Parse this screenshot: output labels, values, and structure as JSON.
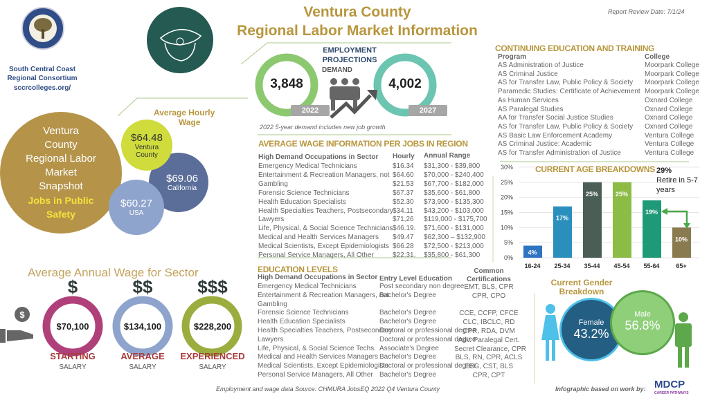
{
  "header": {
    "title_line1": "Ventura County",
    "title_line2": "Regional Labor Market Information",
    "review_date": "Report Review Date: 7/1/24"
  },
  "logo": {
    "org_line1": "South Central Coast",
    "org_line2": "Regional Consortium",
    "url": "sccrcolleges.org/",
    "seal_text": "SOUTH CENTRAL COAST REGIONAL CONSORTIUM"
  },
  "snapshot": {
    "line1": "Ventura",
    "line2": "County",
    "line3": "Regional Labor",
    "line4": "Market",
    "line5": "Snapshot",
    "highlight": "Jobs in Public Safety"
  },
  "hourly": {
    "title_line1": "Average Hourly",
    "title_line2": "Wage",
    "county_value": "$64.48",
    "county_label1": "Ventura",
    "county_label2": "County",
    "ca_value": "$69.06",
    "ca_label": "California",
    "usa_value": "$60.27",
    "usa_label": "USA"
  },
  "projections": {
    "title1": "EMPLOYMENT",
    "title2": "PROJECTIONS",
    "title3": "DEMAND",
    "value_2022": "3,848",
    "year_2022": "2022",
    "value_2027": "4,002",
    "year_2027": "2027",
    "note": "2022 5-year demand includes new job growth"
  },
  "wages": {
    "heading": "AVERAGE WAGE INFORMATION PER JOBS IN REGION",
    "col_occ": "High Demand Occupations in Sector",
    "col_hourly": "Hourly",
    "col_annual": "Annual Range",
    "rows": [
      {
        "occ": "Emergency Medical Technicians",
        "hourly": "$16.34",
        "annual": "$31,300 - $39,800"
      },
      {
        "occ": "Entertainment & Recreation Managers, not",
        "hourly": "$64.60",
        "annual": "$70,000 - $240,400"
      },
      {
        "occ": "Gambling",
        "hourly": "$21.53",
        "annual": "$67,700 - $182,000"
      },
      {
        "occ": "Forensic Science Technicians",
        "hourly": "$67.37",
        "annual": "$35,600 - $61,800"
      },
      {
        "occ": "Health Education Specialists",
        "hourly": "$52.30",
        "annual": "$73,900 - $135,300"
      },
      {
        "occ": "Health Specialties Teachers, Postsecondary",
        "hourly": "$34.11",
        "annual": "$43,200 - $103,000"
      },
      {
        "occ": "Lawyers",
        "hourly": "$71,26",
        "annual": "$119,000 - $175,700"
      },
      {
        "occ": "Life, Physical, & Social Science Technicians",
        "hourly": "$46.19.",
        "annual": "$71,600 - $131,000"
      },
      {
        "occ": "Medical and Health Services Managers",
        "hourly": "$49.47",
        "annual": "$62,300 – $132,900"
      },
      {
        "occ": "Medical Scientists, Except Epidemiologists",
        "hourly": "$66.28",
        "annual": "$72,500 - $213,000"
      },
      {
        "occ": "Personal Service Managers, All Other",
        "hourly": "$22.31.",
        "annual": "$35,800 - $61,300"
      }
    ]
  },
  "education": {
    "heading": "EDUCATION LEVELS",
    "col_occ": "High Demand Occupations in Sector",
    "col_entry": "Entry Level Education",
    "col_cert1": "Common",
    "col_cert2": "Certifications",
    "rows": [
      {
        "occ": "Emergency Medical Technicians",
        "entry": "Post secondary non degree",
        "cert": "EMT, BLS, CPR"
      },
      {
        "occ": "Entertainment & Recreation Managers, not",
        "entry": "Bachelor's Degree",
        "cert": "CPR, CPO"
      },
      {
        "occ": "Gambling",
        "entry": "",
        "cert": ""
      },
      {
        "occ": "Forensic Science Technicians",
        "entry": "Bachelor's Degree",
        "cert": "CCE, CCFP, CFCE"
      },
      {
        "occ": "Health Education Specialists",
        "entry": "Bachelor's Degree",
        "cert": "CLC, IBCLC, RD"
      },
      {
        "occ": "Health Specialties Teachers, Postsecondary",
        "entry": "Doctoral or professional degree",
        "cert": "CPR, RDA, DVM"
      },
      {
        "occ": "Lawyers",
        "entry": "Doctoral or professional degree",
        "cert": "Adv. Paralegal Cert."
      },
      {
        "occ": "Life, Physical, & Social Science Techs.",
        "entry": "Associate's Degree",
        "cert": "Secret Clearance, CPR"
      },
      {
        "occ": "Medical and Health Services Managers",
        "entry": "Bachelor's Degree",
        "cert": "BLS, RN, CPR, ACLS"
      },
      {
        "occ": "Medical Scientists, Except Epidemiologists",
        "entry": "Doctoral or professional degree",
        "cert": "EEG, CST, BLS"
      },
      {
        "occ": "Personal Service Managers, All Other",
        "entry": "Bachelor's Degree",
        "cert": "CPR, CPT"
      }
    ]
  },
  "continuing": {
    "heading": "CONTINUING EDUCATION AND TRAINING",
    "col_program": "Program",
    "col_college": "College",
    "rows": [
      {
        "program": "AS Administration of Justice",
        "college": "Moorpark College"
      },
      {
        "program": "AS Criminal Justice",
        "college": "Moorpark College"
      },
      {
        "program": "AS for Transfer Law, Public Policy & Society",
        "college": "Moorpark College"
      },
      {
        "program": "Paramedic Studies: Certificate of Achievement",
        "college": "Moorpark College"
      },
      {
        "program": "As Human Services",
        "college": "Oxnard College"
      },
      {
        "program": "AS Paralegal Studies",
        "college": "Oxnard College"
      },
      {
        "program": "AA for Transfer Social Justice Studies",
        "college": "Oxnard College"
      },
      {
        "program": "AS for Transfer Law, Public Policy & Society",
        "college": "Oxnard College"
      },
      {
        "program": "AS Basic Law Enforcement Academy",
        "college": "Ventura College"
      },
      {
        "program": "AS Criminal Justice: Academic",
        "college": "Ventura College"
      },
      {
        "program": "AS for Transfer Administration of Justice",
        "college": "Ventura College"
      }
    ]
  },
  "chart_data": {
    "type": "bar",
    "title": "CURRENT AGE BREAKDOWNS",
    "categories": [
      "16-24",
      "25-34",
      "35-44",
      "45-54",
      "55-64",
      "65+"
    ],
    "values": [
      4,
      17,
      25,
      25,
      19,
      10
    ],
    "labels": [
      "4%",
      "17%",
      "25%",
      "25%",
      "19%",
      "10%"
    ],
    "colors": [
      "#2f74c0",
      "#2b8fbd",
      "#4a5e55",
      "#8cbb46",
      "#1f9a78",
      "#8a7a50"
    ],
    "ylim": [
      0,
      30
    ],
    "yticks": [
      "0%",
      "5%",
      "10%",
      "15%",
      "20%",
      "25%",
      "30%"
    ],
    "grid": true,
    "annotation_value": "29%",
    "annotation_text1": "Retire in 5-7",
    "annotation_text2": "years"
  },
  "gender": {
    "title1": "Current Gender",
    "title2": "Breakdown",
    "female_label": "Female",
    "female_value": "43.2%",
    "male_label": "Male",
    "male_value": "56.8%"
  },
  "annual": {
    "title": "Average Annual Wage for Sector",
    "items": [
      {
        "symbol": "$",
        "value": "$70,100",
        "label": "STARTING",
        "sub": "SALARY"
      },
      {
        "symbol": "$$",
        "value": "$134,100",
        "label": "AVERAGE",
        "sub": "SALARY"
      },
      {
        "symbol": "$$$",
        "value": "$228,200",
        "label": "EXPERIENCED",
        "sub": "SALARY"
      }
    ]
  },
  "footer": {
    "source": "Employment and wage data Source: CHMURA JobsEQ 2022 Q4 Ventura County",
    "credit": "Infographic based on work by:",
    "brand": "MDCP",
    "brand_sub": "CAREER PATHWAYS"
  }
}
